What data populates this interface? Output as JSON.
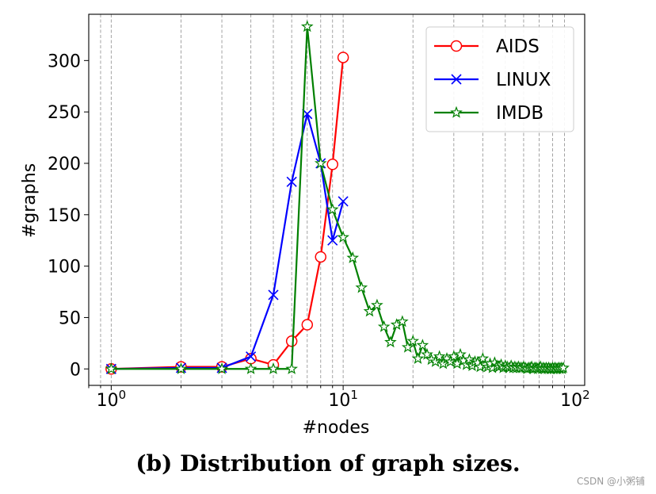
{
  "chart_data": {
    "type": "line",
    "xscale": "log",
    "xlim": [
      0.8,
      110
    ],
    "ylim": [
      -16,
      345
    ],
    "xlabel": "#nodes",
    "ylabel": "#graphs",
    "x_ticks": [
      {
        "value": 1,
        "base": "10",
        "exp": "0"
      },
      {
        "value": 10,
        "base": "10",
        "exp": "1"
      },
      {
        "value": 100,
        "base": "10",
        "exp": "2"
      }
    ],
    "y_ticks": [
      0,
      50,
      100,
      150,
      200,
      250,
      300
    ],
    "grid": "x-minor-dashed",
    "legend": "upper-right",
    "series": [
      {
        "name": "AIDS",
        "color": "#ff0000",
        "marker": "circle",
        "x": [
          1,
          2,
          3,
          4,
          5,
          6,
          7,
          8,
          9,
          10
        ],
        "y": [
          0,
          2,
          2,
          10,
          4,
          27,
          43,
          109,
          199,
          303
        ]
      },
      {
        "name": "LINUX",
        "color": "#0000ff",
        "marker": "x",
        "x": [
          1,
          2,
          3,
          4,
          5,
          6,
          7,
          8,
          9,
          10
        ],
        "y": [
          0,
          1,
          1,
          12,
          72,
          182,
          248,
          200,
          125,
          163
        ]
      },
      {
        "name": "IMDB",
        "color": "#008000",
        "marker": "star",
        "x": [
          1,
          2,
          3,
          4,
          5,
          6,
          7,
          8,
          9,
          10,
          11,
          12,
          13,
          14,
          15,
          16,
          17,
          18,
          19,
          20,
          21,
          22,
          23,
          24,
          25,
          26,
          27,
          28,
          29,
          30,
          31,
          32,
          33,
          34,
          35,
          36,
          37,
          38,
          39,
          40,
          41,
          42,
          43,
          44,
          45,
          46,
          47,
          48,
          49,
          50,
          51,
          52,
          53,
          54,
          55,
          56,
          57,
          58,
          59,
          60,
          61,
          62,
          63,
          64,
          65,
          66,
          67,
          68,
          69,
          70,
          71,
          72,
          73,
          74,
          75,
          76,
          77,
          78,
          79,
          80,
          81,
          82,
          83,
          84,
          85,
          86,
          87,
          88,
          89
        ],
        "y": [
          0,
          0,
          0,
          0,
          0,
          0,
          333,
          200,
          155,
          128,
          108,
          79,
          56,
          62,
          41,
          26,
          43,
          46,
          21,
          27,
          10,
          23,
          14,
          9,
          7,
          12,
          5,
          10,
          7,
          12,
          5,
          14,
          8,
          4,
          9,
          3,
          7,
          6,
          2,
          10,
          4,
          2,
          5,
          1,
          6,
          3,
          2,
          4,
          1,
          3,
          2,
          1,
          3,
          1,
          2,
          1,
          2,
          1,
          1,
          2,
          1,
          0,
          1,
          1,
          2,
          0,
          1,
          1,
          0,
          1,
          2,
          0,
          1,
          0,
          1,
          0,
          1,
          0,
          0,
          1,
          0,
          1,
          0,
          0,
          1,
          0,
          1,
          0,
          1
        ]
      }
    ]
  },
  "caption": "(b) Distribution of graph sizes.",
  "watermark": "CSDN @小粥铺"
}
